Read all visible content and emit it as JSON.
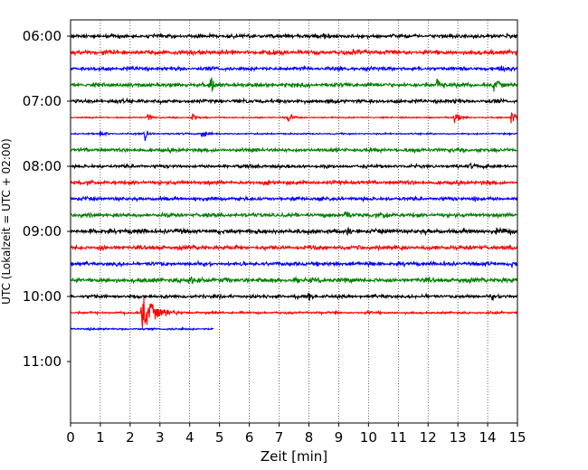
{
  "chart_data": {
    "type": "line",
    "title": "",
    "xlabel": "Zeit  [min]",
    "ylabel": "UTC (Lokalzeit = UTC + 02:00)",
    "xlim": [
      0,
      15
    ],
    "x_ticks": [
      "0",
      "1",
      "2",
      "3",
      "4",
      "5",
      "6",
      "7",
      "8",
      "9",
      "10",
      "11",
      "12",
      "13",
      "14",
      "15"
    ],
    "x_grid": "dotted vertical lines at each minute",
    "y_ticks": [
      "06:00",
      "07:00",
      "08:00",
      "09:00",
      "10:00",
      "11:00"
    ],
    "trace_interval_min": 15,
    "colors": [
      "#000000",
      "#ff0000",
      "#0000ff",
      "#008000"
    ],
    "traces": [
      {
        "start": "06:00",
        "color": "#000000",
        "end_min": 15,
        "noise": 2.2,
        "events": [
          {
            "t": 8.5,
            "amp": 3
          },
          {
            "t": 10.8,
            "amp": 3
          },
          {
            "t": 14.6,
            "amp": 3
          }
        ]
      },
      {
        "start": "06:15",
        "color": "#ff0000",
        "end_min": 15,
        "noise": 2.6,
        "events": [
          {
            "t": 9.5,
            "amp": 3
          },
          {
            "t": 14.1,
            "amp": 3
          }
        ]
      },
      {
        "start": "06:30",
        "color": "#0000ff",
        "end_min": 15,
        "noise": 2.3,
        "events": [
          {
            "t": 14.4,
            "amp": 3
          }
        ]
      },
      {
        "start": "06:45",
        "color": "#008000",
        "end_min": 15,
        "noise": 2.4,
        "events": [
          {
            "t": 4.7,
            "amp": 12
          },
          {
            "t": 12.3,
            "amp": 8
          },
          {
            "t": 14.2,
            "amp": 8
          }
        ]
      },
      {
        "start": "07:00",
        "color": "#000000",
        "end_min": 15,
        "noise": 2.3,
        "events": [
          {
            "t": 12.9,
            "amp": 3
          }
        ]
      },
      {
        "start": "07:15",
        "color": "#ff0000",
        "end_min": 15,
        "noise": 0.8,
        "events": [
          {
            "t": 2.6,
            "amp": 5
          },
          {
            "t": 4.1,
            "amp": 6
          },
          {
            "t": 7.3,
            "amp": 6
          },
          {
            "t": 12.9,
            "amp": 11
          },
          {
            "t": 14.8,
            "amp": 13
          }
        ]
      },
      {
        "start": "07:30",
        "color": "#0000ff",
        "end_min": 15,
        "noise": 0.9,
        "events": [
          {
            "t": 1.0,
            "amp": 5
          },
          {
            "t": 2.5,
            "amp": 7
          },
          {
            "t": 4.4,
            "amp": 9
          }
        ]
      },
      {
        "start": "07:45",
        "color": "#008000",
        "end_min": 15,
        "noise": 2.2,
        "events": [
          {
            "t": 11.5,
            "amp": 3
          }
        ]
      },
      {
        "start": "08:00",
        "color": "#000000",
        "end_min": 15,
        "noise": 1.9,
        "events": [
          {
            "t": 13.4,
            "amp": 3
          }
        ]
      },
      {
        "start": "08:15",
        "color": "#ff0000",
        "end_min": 15,
        "noise": 2.2,
        "events": [
          {
            "t": 6.5,
            "amp": 4
          }
        ]
      },
      {
        "start": "08:30",
        "color": "#0000ff",
        "end_min": 15,
        "noise": 2.1,
        "events": [
          {
            "t": 13.5,
            "amp": 3
          }
        ]
      },
      {
        "start": "08:45",
        "color": "#008000",
        "end_min": 15,
        "noise": 2.3,
        "events": [
          {
            "t": 9.2,
            "amp": 9
          },
          {
            "t": 10.5,
            "amp": 4
          }
        ]
      },
      {
        "start": "09:00",
        "color": "#000000",
        "end_min": 15,
        "noise": 2.7,
        "events": [
          {
            "t": 9.3,
            "amp": 4
          },
          {
            "t": 14.3,
            "amp": 3
          }
        ]
      },
      {
        "start": "09:15",
        "color": "#ff0000",
        "end_min": 15,
        "noise": 2.4,
        "events": [
          {
            "t": 1.0,
            "amp": 4
          },
          {
            "t": 5.5,
            "amp": 3
          }
        ]
      },
      {
        "start": "09:30",
        "color": "#0000ff",
        "end_min": 15,
        "noise": 2.3,
        "events": [
          {
            "t": 10.0,
            "amp": 4
          },
          {
            "t": 14.8,
            "amp": 3
          }
        ]
      },
      {
        "start": "09:45",
        "color": "#008000",
        "end_min": 15,
        "noise": 2.7,
        "events": [
          {
            "t": 4.0,
            "amp": 4
          },
          {
            "t": 7.5,
            "amp": 3
          }
        ]
      },
      {
        "start": "10:00",
        "color": "#000000",
        "end_min": 15,
        "noise": 2.0,
        "events": [
          {
            "t": 8.0,
            "amp": 3
          },
          {
            "t": 14.1,
            "amp": 4
          }
        ]
      },
      {
        "start": "10:15",
        "color": "#ff0000",
        "end_min": 15,
        "noise": 1.3,
        "events": [
          {
            "t": 2.4,
            "amp": 28
          },
          {
            "t": 10.0,
            "amp": 2
          }
        ]
      },
      {
        "start": "10:30",
        "color": "#0000ff",
        "end_min": 4.8,
        "noise": 1.2,
        "events": []
      }
    ]
  }
}
